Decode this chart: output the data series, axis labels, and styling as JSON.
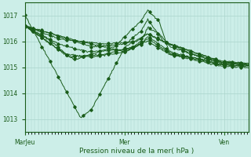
{
  "xlabel": "Pression niveau de la mer( hPa )",
  "background_color": "#cceee8",
  "grid_color": "#aad4cc",
  "line_color": "#1a5c1a",
  "marker_color": "#1a5c1a",
  "ylim": [
    1012.5,
    1017.5
  ],
  "yticks": [
    1013,
    1014,
    1015,
    1016,
    1017
  ],
  "xtick_labels": [
    "MarJeu",
    "Mer",
    "Ven"
  ],
  "xtick_positions": [
    0,
    120,
    240
  ],
  "n": 270
}
